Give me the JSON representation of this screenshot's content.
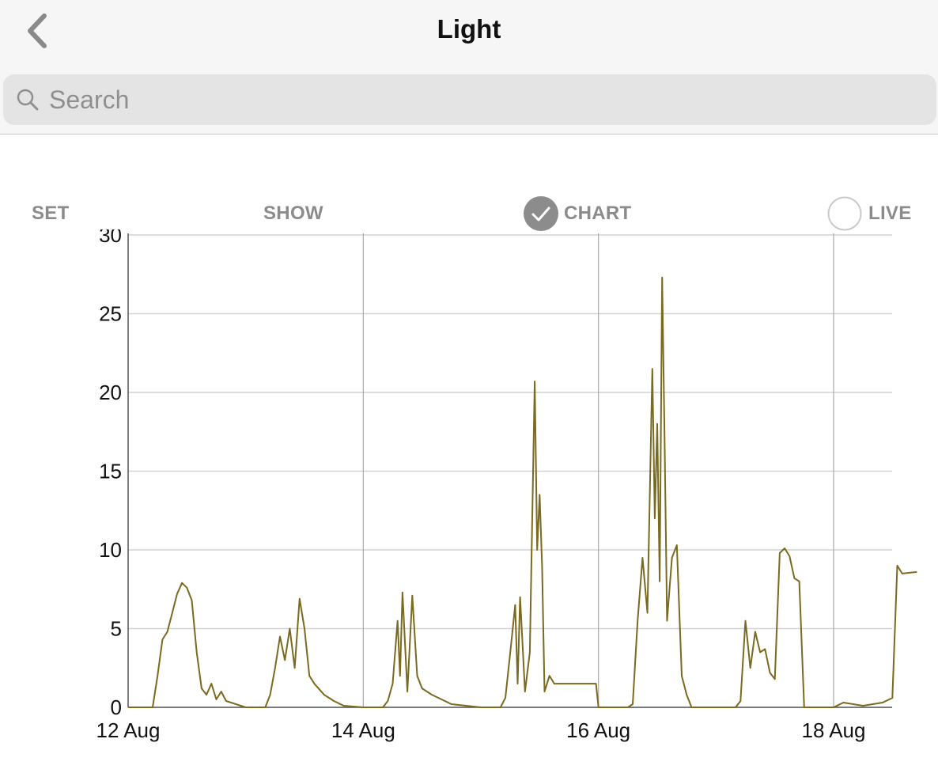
{
  "header": {
    "title": "Light",
    "back_icon": "chevron-left-icon"
  },
  "search": {
    "placeholder": "Search",
    "value": "",
    "icon": "search-icon"
  },
  "controls": {
    "set_label": "SET",
    "show_label": "SHOW",
    "chart_label": "CHART",
    "chart_checked": true,
    "live_label": "LIVE",
    "live_checked": false
  },
  "colors": {
    "line": "#7a6a1f",
    "checked_fill": "#8c8c8c",
    "control_text": "#8b8b8b"
  },
  "chart_data": {
    "type": "line",
    "title": "",
    "xlabel": "",
    "ylabel": "",
    "ylim": [
      0,
      30
    ],
    "yticks": [
      0,
      5,
      10,
      15,
      20,
      25,
      30
    ],
    "xlim_days_label_range": [
      "12 Aug",
      "18 Aug"
    ],
    "xticks": [
      "12 Aug",
      "14 Aug",
      "16 Aug",
      "18 Aug"
    ],
    "grid": true,
    "series": [
      {
        "color": "#7a6a1f",
        "points": [
          [
            "12 Aug 00:00",
            0
          ],
          [
            "12 Aug 05:00",
            0
          ],
          [
            "12 Aug 06:00",
            2
          ],
          [
            "12 Aug 07:00",
            4.3
          ],
          [
            "12 Aug 08:00",
            4.8
          ],
          [
            "12 Aug 09:00",
            6
          ],
          [
            "12 Aug 10:00",
            7.2
          ],
          [
            "12 Aug 11:00",
            7.9
          ],
          [
            "12 Aug 12:00",
            7.6
          ],
          [
            "12 Aug 13:00",
            6.8
          ],
          [
            "12 Aug 14:00",
            3.5
          ],
          [
            "12 Aug 15:00",
            1.2
          ],
          [
            "12 Aug 16:00",
            0.8
          ],
          [
            "12 Aug 17:00",
            1.5
          ],
          [
            "12 Aug 18:00",
            0.5
          ],
          [
            "12 Aug 19:00",
            1
          ],
          [
            "12 Aug 20:00",
            0.4
          ],
          [
            "12 Aug 22:00",
            0.2
          ],
          [
            "13 Aug 00:00",
            0
          ],
          [
            "13 Aug 04:00",
            0
          ],
          [
            "13 Aug 05:00",
            0.8
          ],
          [
            "13 Aug 06:00",
            2.5
          ],
          [
            "13 Aug 07:00",
            4.5
          ],
          [
            "13 Aug 08:00",
            3.0
          ],
          [
            "13 Aug 09:00",
            5.0
          ],
          [
            "13 Aug 10:00",
            2.5
          ],
          [
            "13 Aug 11:00",
            6.9
          ],
          [
            "13 Aug 12:00",
            5.0
          ],
          [
            "13 Aug 13:00",
            2.0
          ],
          [
            "13 Aug 14:00",
            1.5
          ],
          [
            "13 Aug 16:00",
            0.8
          ],
          [
            "13 Aug 18:00",
            0.4
          ],
          [
            "13 Aug 20:00",
            0.1
          ],
          [
            "14 Aug 00:00",
            0
          ],
          [
            "14 Aug 04:00",
            0
          ],
          [
            "14 Aug 05:00",
            0.4
          ],
          [
            "14 Aug 06:00",
            1.5
          ],
          [
            "14 Aug 07:00",
            5.5
          ],
          [
            "14 Aug 07:30",
            2.0
          ],
          [
            "14 Aug 08:00",
            7.3
          ],
          [
            "14 Aug 09:00",
            1.0
          ],
          [
            "14 Aug 10:00",
            7.1
          ],
          [
            "14 Aug 11:00",
            2.0
          ],
          [
            "14 Aug 12:00",
            1.2
          ],
          [
            "14 Aug 14:00",
            0.8
          ],
          [
            "14 Aug 16:00",
            0.5
          ],
          [
            "14 Aug 18:00",
            0.2
          ],
          [
            "15 Aug 00:00",
            0
          ],
          [
            "15 Aug 04:00",
            0
          ],
          [
            "15 Aug 05:00",
            0.6
          ],
          [
            "15 Aug 06:00",
            3.5
          ],
          [
            "15 Aug 07:00",
            6.5
          ],
          [
            "15 Aug 07:30",
            1.5
          ],
          [
            "15 Aug 08:00",
            7.0
          ],
          [
            "15 Aug 09:00",
            1.0
          ],
          [
            "15 Aug 10:00",
            3.5
          ],
          [
            "15 Aug 11:00",
            20.7
          ],
          [
            "15 Aug 11:30",
            10
          ],
          [
            "15 Aug 12:00",
            13.5
          ],
          [
            "15 Aug 12:30",
            9
          ],
          [
            "15 Aug 13:00",
            1.0
          ],
          [
            "15 Aug 14:00",
            2.0
          ],
          [
            "15 Aug 15:00",
            1.5
          ],
          [
            "15 Aug 23:30",
            1.5
          ],
          [
            "16 Aug 00:00",
            0
          ],
          [
            "16 Aug 06:00",
            0
          ],
          [
            "16 Aug 07:00",
            0.2
          ],
          [
            "16 Aug 08:00",
            5.5
          ],
          [
            "16 Aug 09:00",
            9.5
          ],
          [
            "16 Aug 10:00",
            6.0
          ],
          [
            "16 Aug 11:00",
            21.5
          ],
          [
            "16 Aug 11:30",
            12.0
          ],
          [
            "16 Aug 12:00",
            18.0
          ],
          [
            "16 Aug 12:30",
            8.0
          ],
          [
            "16 Aug 13:00",
            27.3
          ],
          [
            "16 Aug 13:30",
            17.0
          ],
          [
            "16 Aug 14:00",
            5.5
          ],
          [
            "16 Aug 15:00",
            9.5
          ],
          [
            "16 Aug 16:00",
            10.3
          ],
          [
            "16 Aug 17:00",
            2.0
          ],
          [
            "16 Aug 18:00",
            0.8
          ],
          [
            "16 Aug 19:00",
            0
          ],
          [
            "17 Aug 00:00",
            0
          ],
          [
            "17 Aug 04:00",
            0
          ],
          [
            "17 Aug 05:00",
            0.4
          ],
          [
            "17 Aug 06:00",
            5.5
          ],
          [
            "17 Aug 07:00",
            2.5
          ],
          [
            "17 Aug 08:00",
            4.8
          ],
          [
            "17 Aug 09:00",
            3.5
          ],
          [
            "17 Aug 10:00",
            3.7
          ],
          [
            "17 Aug 11:00",
            2.2
          ],
          [
            "17 Aug 12:00",
            1.8
          ],
          [
            "17 Aug 13:00",
            9.8
          ],
          [
            "17 Aug 14:00",
            10.1
          ],
          [
            "17 Aug 15:00",
            9.6
          ],
          [
            "17 Aug 16:00",
            8.2
          ],
          [
            "17 Aug 17:00",
            8.0
          ],
          [
            "17 Aug 18:00",
            0
          ],
          [
            "18 Aug 00:00",
            0
          ],
          [
            "18 Aug 02:00",
            0.3
          ],
          [
            "18 Aug 06:00",
            0.1
          ],
          [
            "18 Aug 10:00",
            0.3
          ],
          [
            "18 Aug 12:00",
            0.6
          ],
          [
            "18 Aug 13:00",
            9.0
          ],
          [
            "18 Aug 14:00",
            8.5
          ],
          [
            "18 Aug 17:00",
            8.6
          ]
        ]
      }
    ]
  }
}
